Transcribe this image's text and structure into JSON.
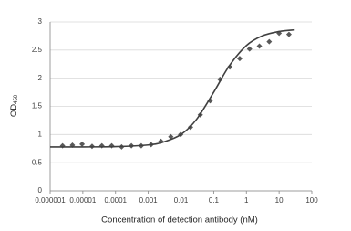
{
  "chart_data": {
    "type": "scatter",
    "xlabel": "Concentration of detection antibody (nM)",
    "ylabel": "OD",
    "ylabel_sub": "450",
    "log_x": true,
    "grid": true,
    "xlim": [
      1e-06,
      100
    ],
    "xticks": [
      1e-06,
      1e-05,
      0.0001,
      0.001,
      0.01,
      0.1,
      1,
      10,
      100
    ],
    "ylim": [
      0,
      3
    ],
    "yticks": [
      0,
      0.5,
      1,
      1.5,
      2,
      2.5,
      3
    ],
    "series": [
      {
        "kind": "points",
        "color": "#595959",
        "x": [
          2.4e-06,
          4.8e-06,
          9.5e-06,
          1.91e-05,
          3.81e-05,
          7.63e-05,
          0.000153,
          0.000305,
          0.00061,
          0.001221,
          0.002441,
          0.004883,
          0.009766,
          0.01953,
          0.0390625,
          0.078125,
          0.15625,
          0.3125,
          0.625,
          1.25,
          2.5,
          5,
          10,
          20
        ],
        "values": [
          0.8,
          0.81,
          0.83,
          0.79,
          0.8,
          0.8,
          0.78,
          0.8,
          0.8,
          0.82,
          0.88,
          0.96,
          1.0,
          1.13,
          1.35,
          1.6,
          1.98,
          2.2,
          2.35,
          2.52,
          2.57,
          2.65,
          2.8,
          2.78
        ]
      },
      {
        "kind": "curve",
        "color": "#404040",
        "x": [
          1e-06,
          1e-05,
          0.0001,
          0.001,
          0.003,
          0.01,
          0.03,
          0.1,
          0.3,
          1,
          3,
          10,
          30
        ],
        "values": [
          0.78,
          0.78,
          0.785,
          0.815,
          0.87,
          1.0,
          1.27,
          1.75,
          2.22,
          2.58,
          2.75,
          2.83,
          2.86
        ]
      }
    ]
  }
}
